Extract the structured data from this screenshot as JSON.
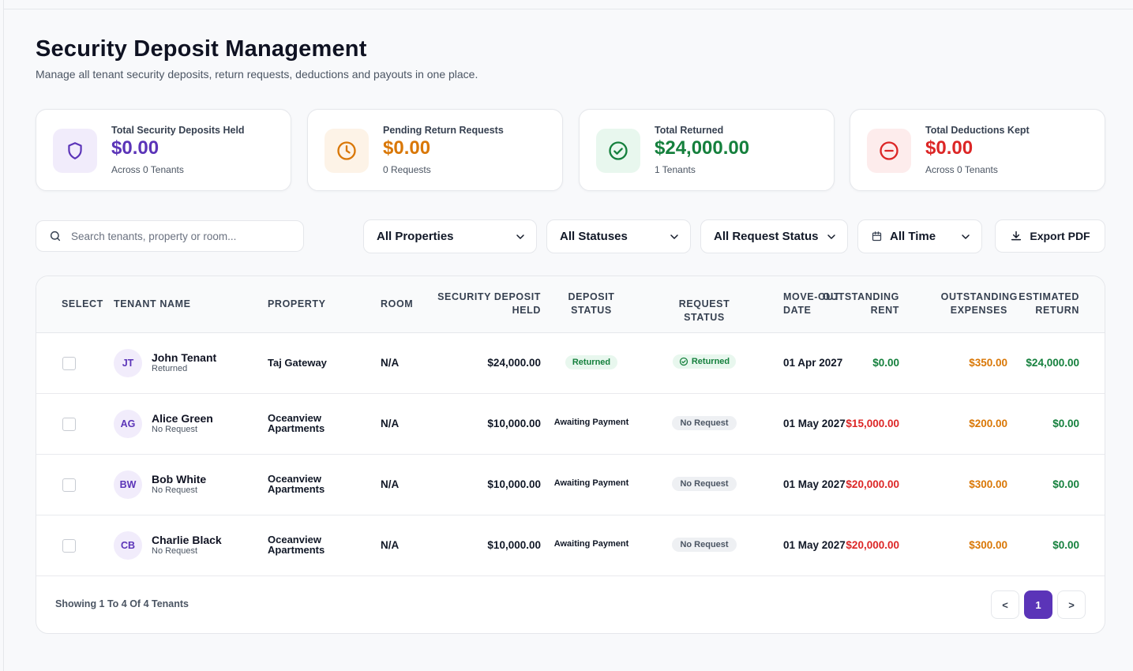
{
  "header": {
    "title": "Security Deposit Management",
    "subtitle": "Manage all tenant security deposits, return requests, deductions and payouts in one place."
  },
  "stats": [
    {
      "label": "Total Security Deposits Held",
      "value": "$0.00",
      "sub": "Across 0 Tenants",
      "icon": "shield-icon",
      "color": "#5b34b8",
      "bg": "#f1ecfb"
    },
    {
      "label": "Pending Return Requests",
      "value": "$0.00",
      "sub": "0 Requests",
      "icon": "clock-icon",
      "color": "#d97706",
      "bg": "#fdf3e7"
    },
    {
      "label": "Total Returned",
      "value": "$24,000.00",
      "sub": "1 Tenants",
      "icon": "check-circle-icon",
      "color": "#15803d",
      "bg": "#e8f7ee"
    },
    {
      "label": "Total Deductions Kept",
      "value": "$0.00",
      "sub": "Across 0 Tenants",
      "icon": "minus-circle-icon",
      "color": "#dc2626",
      "bg": "#fdecec"
    }
  ],
  "filters": {
    "search_placeholder": "Search tenants, property or room...",
    "properties": "All Properties",
    "statuses": "All Statuses",
    "request_status": "All Request Status",
    "time": "All Time",
    "export_label": "Export PDF"
  },
  "table": {
    "headers": {
      "select": "Select",
      "tenant": "Tenant Name",
      "property": "Property",
      "room": "Room",
      "deposit_1": "Security Deposit",
      "deposit_2": "Held",
      "dstatus_1": "Deposit",
      "dstatus_2": "Status",
      "rstatus": "Request Status",
      "moveout_1": "Move-Out",
      "moveout_2": "Date",
      "orent_1": "Outstanding",
      "orent_2": "Rent",
      "oexp_1": "Outstanding",
      "oexp_2": "Expenses",
      "eret_1": "Estimated",
      "eret_2": "Return"
    },
    "rows": [
      {
        "initials": "JT",
        "name": "John Tenant",
        "sub": "Returned",
        "property_1": "Taj Gateway",
        "property_2": "",
        "room": "N/A",
        "deposit": "$24,000.00",
        "deposit_status": "Returned",
        "request_status": "Returned",
        "move_out": "01 Apr 2027",
        "outstanding_rent": "$0.00",
        "rent_color": "#15803d",
        "outstanding_expenses": "$350.00",
        "estimated_return": "$24,000.00"
      },
      {
        "initials": "AG",
        "name": "Alice Green",
        "sub": "No Request",
        "property_1": "Oceanview",
        "property_2": "Apartments",
        "room": "N/A",
        "deposit": "$10,000.00",
        "deposit_status": "Awaiting Payment",
        "request_status": "No Request",
        "move_out": "01 May 2027",
        "outstanding_rent": "$15,000.00",
        "rent_color": "#dc2626",
        "outstanding_expenses": "$200.00",
        "estimated_return": "$0.00"
      },
      {
        "initials": "BW",
        "name": "Bob White",
        "sub": "No Request",
        "property_1": "Oceanview",
        "property_2": "Apartments",
        "room": "N/A",
        "deposit": "$10,000.00",
        "deposit_status": "Awaiting Payment",
        "request_status": "No Request",
        "move_out": "01 May 2027",
        "outstanding_rent": "$20,000.00",
        "rent_color": "#dc2626",
        "outstanding_expenses": "$300.00",
        "estimated_return": "$0.00"
      },
      {
        "initials": "CB",
        "name": "Charlie Black",
        "sub": "No Request",
        "property_1": "Oceanview",
        "property_2": "Apartments",
        "room": "N/A",
        "deposit": "$10,000.00",
        "deposit_status": "Awaiting Payment",
        "request_status": "No Request",
        "move_out": "01 May 2027",
        "outstanding_rent": "$20,000.00",
        "rent_color": "#dc2626",
        "outstanding_expenses": "$300.00",
        "estimated_return": "$0.00"
      }
    ]
  },
  "footer": {
    "showing": "Showing 1 To 4 Of 4 Tenants",
    "prev": "<",
    "page": "1",
    "next": ">"
  }
}
